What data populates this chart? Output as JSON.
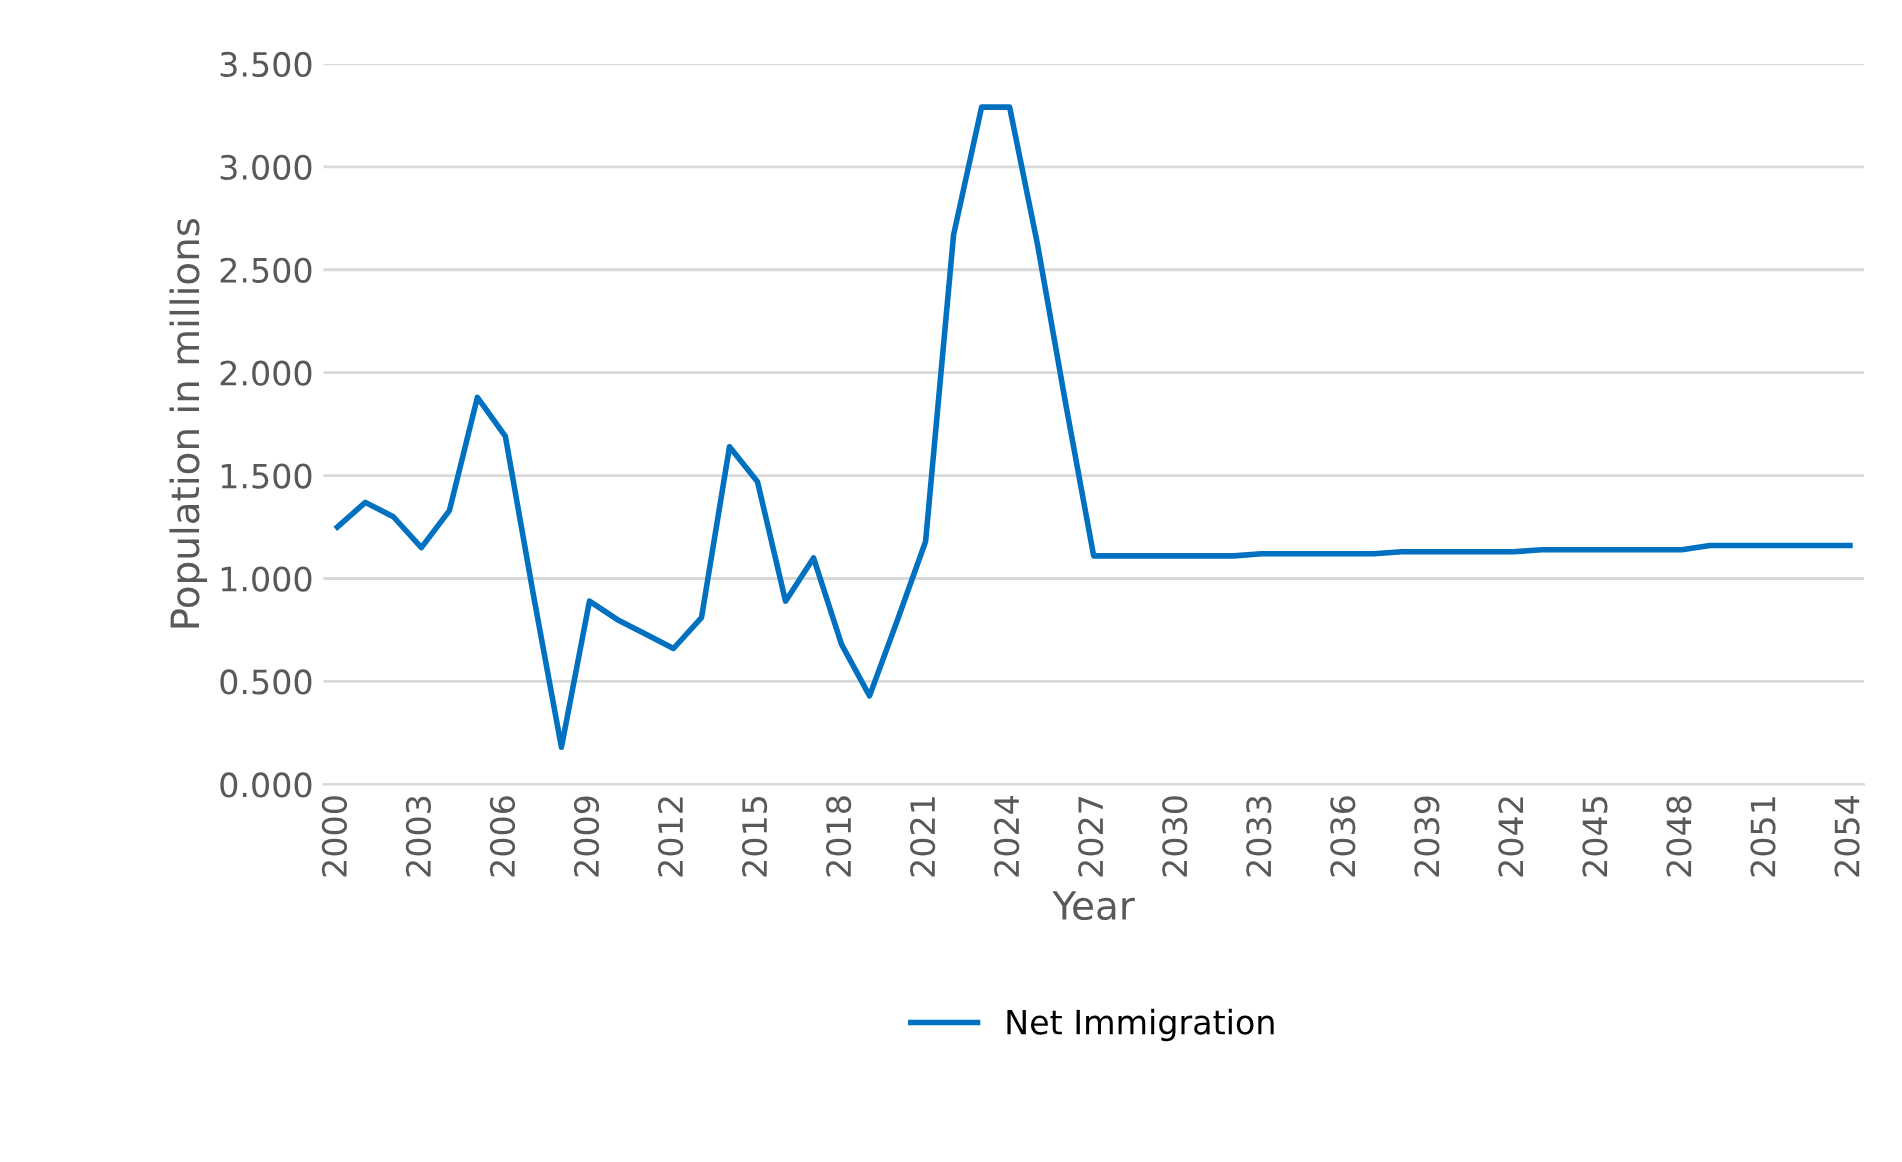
{
  "chart_data": {
    "type": "line",
    "xlabel": "Year",
    "ylabel": "Population in millions",
    "categories": [
      "2000",
      null,
      null,
      "2003",
      null,
      null,
      "2006",
      null,
      null,
      "2009",
      null,
      null,
      "2012",
      null,
      null,
      "2015",
      null,
      null,
      "2018",
      null,
      null,
      "2021",
      null,
      null,
      "2024",
      null,
      null,
      "2027",
      null,
      null,
      "2030",
      null,
      null,
      "2033",
      null,
      null,
      "2036",
      null,
      null,
      "2039",
      null,
      null,
      "2042",
      null,
      null,
      "2045",
      null,
      null,
      "2048",
      null,
      null,
      "2051",
      null,
      null,
      "2054"
    ],
    "series": [
      {
        "name": "Net Immigration",
        "color": "#0070c0",
        "values": [
          1.25,
          1.37,
          1.3,
          1.15,
          1.33,
          1.88,
          1.69,
          0.92,
          0.18,
          0.89,
          0.8,
          0.73,
          0.66,
          0.81,
          1.64,
          1.47,
          0.89,
          1.1,
          0.68,
          0.43,
          0.8,
          1.18,
          2.67,
          3.29,
          3.29,
          2.62,
          1.85,
          1.11,
          1.11,
          1.11,
          1.11,
          1.11,
          1.11,
          1.12,
          1.12,
          1.12,
          1.12,
          1.12,
          1.13,
          1.13,
          1.13,
          1.13,
          1.13,
          1.14,
          1.14,
          1.14,
          1.14,
          1.14,
          1.14,
          1.16,
          1.16,
          1.16,
          1.16,
          1.16,
          1.16
        ]
      }
    ],
    "ylim": [
      0,
      3.5
    ],
    "yticks": [
      {
        "value": 0,
        "label": "0.000"
      },
      {
        "value": 0.5,
        "label": "0.500"
      },
      {
        "value": 1,
        "label": "1.000"
      },
      {
        "value": 1.5,
        "label": "1.500"
      },
      {
        "value": 2,
        "label": "2.000"
      },
      {
        "value": 2.5,
        "label": "2.500"
      },
      {
        "value": 3,
        "label": "3.000"
      },
      {
        "value": 3.5,
        "label": "3.500"
      }
    ],
    "grid": "y",
    "legend": "bottom",
    "marker": "none",
    "line_style": "solid"
  }
}
